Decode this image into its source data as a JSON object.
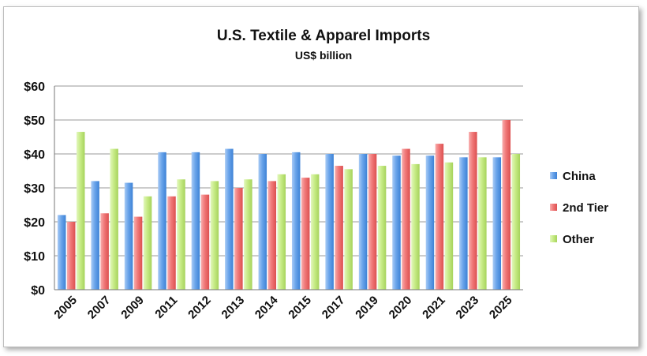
{
  "chart_data": {
    "type": "bar",
    "title": "U.S. Textile & Apparel Imports",
    "subtitle": "US$ billion",
    "xlabel": "",
    "ylabel": "",
    "ylim": [
      0,
      60
    ],
    "yticks": [
      0,
      10,
      20,
      30,
      40,
      50,
      60
    ],
    "ytick_labels": [
      "$0",
      "$10",
      "$20",
      "$30",
      "$40",
      "$50",
      "$60"
    ],
    "grid": true,
    "legend_position": "right",
    "categories": [
      "2005",
      "2007",
      "2009",
      "2011",
      "2012",
      "2013",
      "2014",
      "2015",
      "2017",
      "2019",
      "2020",
      "2021",
      "2023",
      "2025"
    ],
    "series": [
      {
        "name": "China",
        "color": "#6aa4ea",
        "values": [
          22,
          32,
          31.5,
          40.5,
          40.5,
          41.5,
          40,
          40.5,
          40,
          40,
          39.5,
          39.5,
          39,
          39
        ]
      },
      {
        "name": "2nd Tier",
        "color": "#f07878",
        "values": [
          20,
          22.5,
          21.5,
          27.5,
          28,
          30,
          32,
          33,
          36.5,
          40,
          41.5,
          43,
          46.5,
          50
        ]
      },
      {
        "name": "Other",
        "color": "#c7eb86",
        "values": [
          46.5,
          41.5,
          27.5,
          32.5,
          32,
          32.5,
          34,
          34,
          35.5,
          36.5,
          37,
          37.5,
          39,
          40
        ]
      }
    ]
  }
}
